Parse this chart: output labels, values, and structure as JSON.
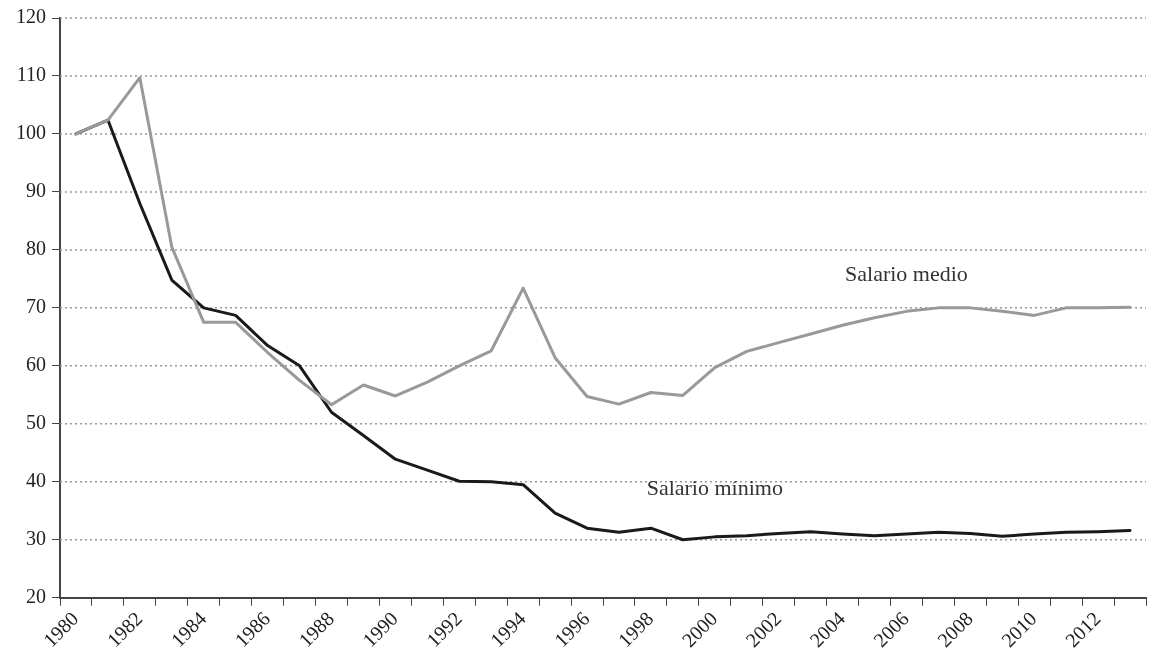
{
  "chart_data": {
    "type": "line",
    "categories": [
      "1980",
      null,
      "1982",
      null,
      "1984",
      null,
      "1986",
      null,
      "1988",
      null,
      "1990",
      null,
      "1992",
      null,
      "1994",
      null,
      "1996",
      null,
      "1998",
      null,
      "2000",
      null,
      "2002",
      null,
      "2004",
      null,
      "2006",
      null,
      "2008",
      null,
      "2010",
      null,
      "2012",
      null
    ],
    "series": [
      {
        "name": "Salario medio",
        "color": "#999999",
        "values": [
          100,
          102.4,
          109.7,
          80.5,
          67.5,
          67.5,
          62.3,
          57.5,
          53.3,
          56.7,
          54.8,
          57.2,
          60,
          62.6,
          73.4,
          61.4,
          54.7,
          53.4,
          55.4,
          54.9,
          59.7,
          62.5,
          64,
          65.5,
          67,
          68.3,
          69.4,
          70,
          70,
          69.4,
          68.7,
          70,
          70,
          70.1
        ]
      },
      {
        "name": "Salario mínimo",
        "color": "#1a1a1a",
        "values": [
          100,
          102.4,
          88,
          74.8,
          70,
          68.7,
          63.5,
          60,
          52,
          48,
          43.9,
          42,
          40.1,
          40,
          39.5,
          34.6,
          32,
          31.3,
          32,
          30,
          30.5,
          30.7,
          31.1,
          31.4,
          31,
          30.7,
          31,
          31.3,
          31.1,
          30.6,
          31,
          31.3,
          31.4,
          31.6
        ]
      }
    ],
    "ylim": [
      20,
      120
    ],
    "yticks": [
      20,
      30,
      40,
      50,
      60,
      70,
      80,
      90,
      100,
      110,
      120
    ],
    "grid": "y",
    "legend": false,
    "marker": "none",
    "line_style": "solid"
  }
}
